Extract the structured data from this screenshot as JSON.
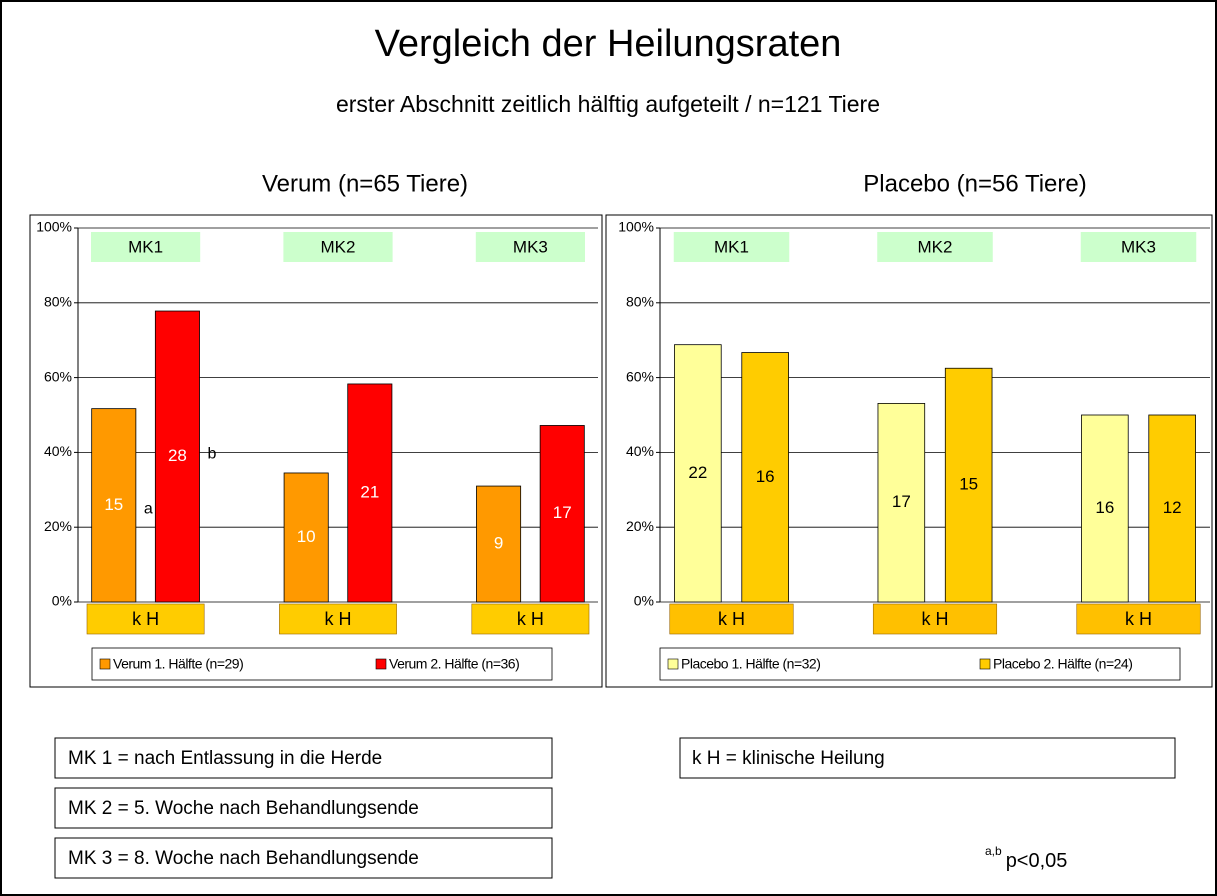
{
  "title": "Vergleich der Heilungsraten",
  "subtitle": "erster Abschnitt zeitlich hälftig aufgeteilt / n=121 Tiere",
  "chart_data": [
    {
      "type": "bar",
      "title": "Verum (n=65 Tiere)",
      "categories": [
        "MK1",
        "MK2",
        "MK3"
      ],
      "bottom_labels": [
        "k H",
        "k H",
        "k H"
      ],
      "category_color": "#ccffcc",
      "bottom_color": "#ffcc00",
      "label_color": "#ffffff",
      "ylim": [
        0,
        100
      ],
      "yticks": [
        {
          "value": 0,
          "label": "0%"
        },
        {
          "value": 20,
          "label": "20%"
        },
        {
          "value": 40,
          "label": "40%"
        },
        {
          "value": 60,
          "label": "60%"
        },
        {
          "value": 80,
          "label": "80%"
        },
        {
          "value": 100,
          "label": "100%"
        }
      ],
      "grid": true,
      "series": [
        {
          "name": "Verum 1. Hälfte (n=29)",
          "color": "#ff9900",
          "values": [
            51.7,
            34.5,
            31.0
          ],
          "counts": [
            15,
            10,
            9
          ],
          "marks": [
            "a",
            null,
            null
          ]
        },
        {
          "name": "Verum 2. Hälfte (n=36)",
          "color": "#ff0000",
          "values": [
            77.8,
            58.3,
            47.2
          ],
          "counts": [
            28,
            21,
            17
          ],
          "marks": [
            "b",
            null,
            null
          ]
        }
      ]
    },
    {
      "type": "bar",
      "title": "Placebo (n=56 Tiere)",
      "categories": [
        "MK1",
        "MK2",
        "MK3"
      ],
      "bottom_labels": [
        "k H",
        "k H",
        "k H"
      ],
      "category_color": "#ccffcc",
      "bottom_color": "#ffc000",
      "label_color": "#000000",
      "ylim": [
        0,
        100
      ],
      "yticks": [
        {
          "value": 0,
          "label": "0%"
        },
        {
          "value": 20,
          "label": "20%"
        },
        {
          "value": 40,
          "label": "40%"
        },
        {
          "value": 60,
          "label": "60%"
        },
        {
          "value": 80,
          "label": "80%"
        },
        {
          "value": 100,
          "label": "100%"
        }
      ],
      "grid": true,
      "series": [
        {
          "name": "Placebo 1. Hälfte (n=32)",
          "color": "#ffff99",
          "values": [
            68.8,
            53.1,
            50.0
          ],
          "counts": [
            22,
            17,
            16
          ]
        },
        {
          "name": "Placebo 2. Hälfte (n=24)",
          "color": "#ffcc00",
          "values": [
            66.7,
            62.5,
            50.0
          ],
          "counts": [
            16,
            15,
            12
          ]
        }
      ]
    }
  ],
  "notes": [
    "MK 1 = nach Entlassung in die Herde",
    "MK 2 = 5. Woche nach Behandlungsende",
    "MK 3 = 8. Woche nach Behandlungsende",
    "k H = klinische Heilung"
  ],
  "footnote": {
    "superscript": "a,b",
    "text": "p<0,05"
  }
}
